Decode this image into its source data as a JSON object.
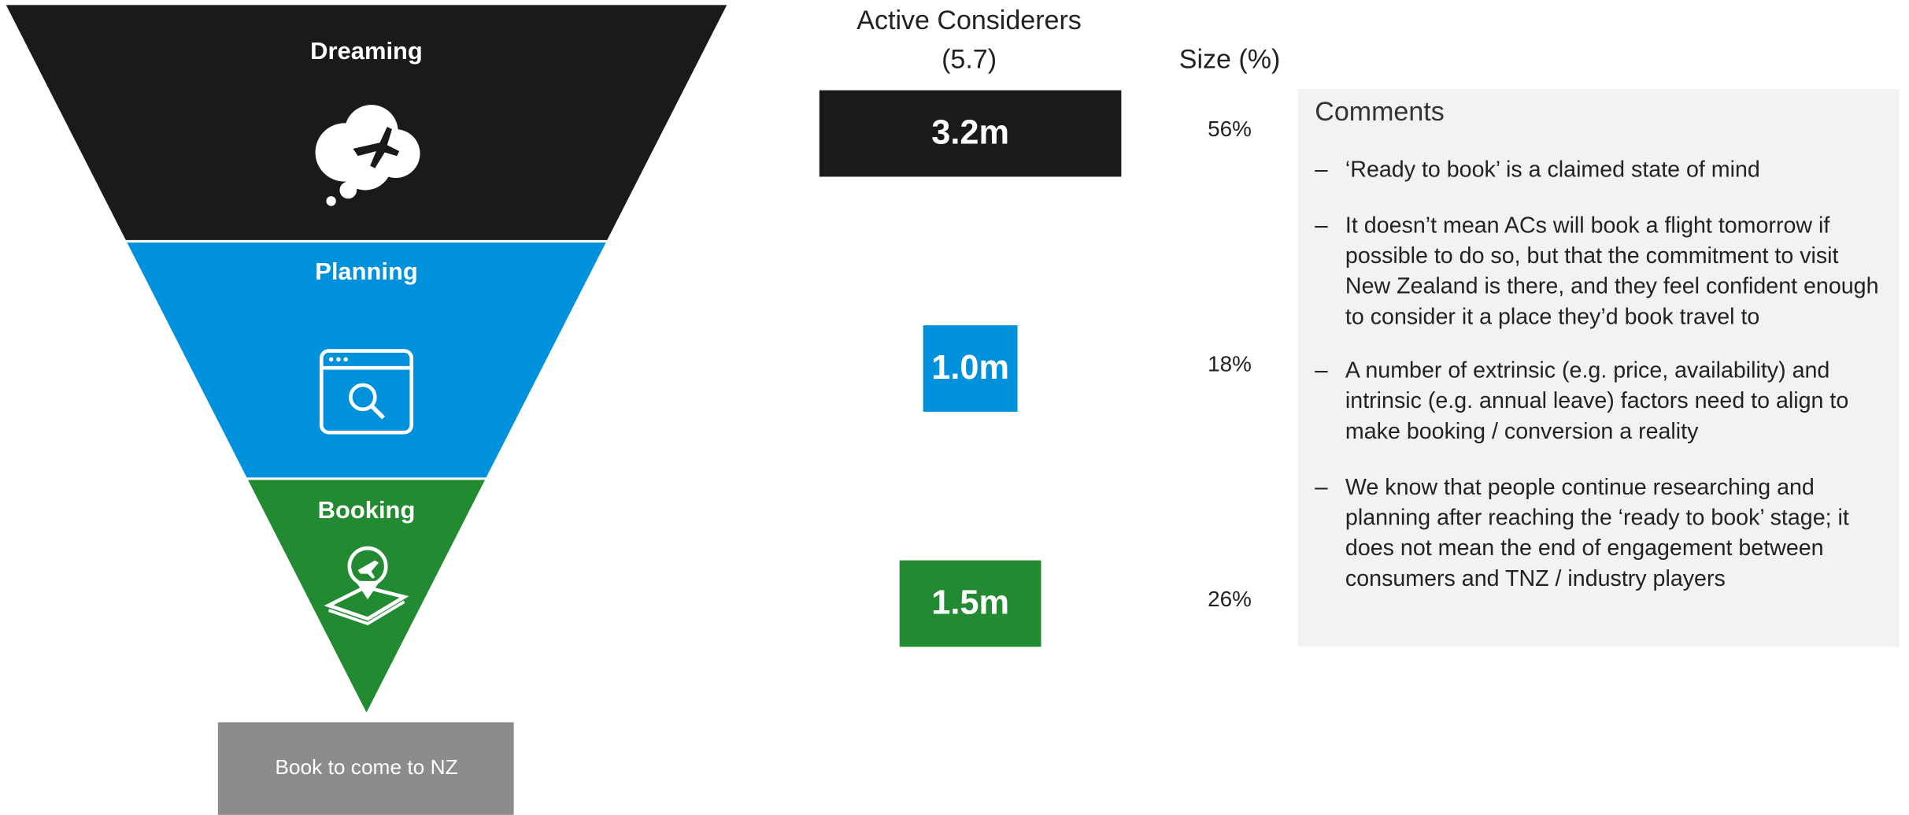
{
  "funnel": {
    "stages": [
      {
        "label": "Dreaming",
        "color": "#1a1a1a"
      },
      {
        "label": "Planning",
        "color": "#0091dd"
      },
      {
        "label": "Booking",
        "color": "#228b32"
      }
    ],
    "outcome": "Book to come to NZ"
  },
  "considerers_title": "Active Considerers",
  "considerers_total": "(5.7)",
  "size_title": "Size (%)",
  "rows": [
    {
      "value": 3.2,
      "label": "3.2m",
      "size": "56%",
      "color": "#1a1a1a"
    },
    {
      "value": 1.0,
      "label": "1.0m",
      "size": "18%",
      "color": "#0091dd"
    },
    {
      "value": 1.5,
      "label": "1.5m",
      "size": "26%",
      "color": "#228b32"
    }
  ],
  "comments": {
    "title": "Comments",
    "items": [
      [
        "‘Ready to book’ is a claimed state of mind"
      ],
      [
        "It doesn’t mean ACs will book a flight tomorrow if",
        "possible to do so, but that the commitment to visit",
        "New Zealand is there, and they feel confident enough",
        "to consider it a place they’d book travel to"
      ],
      [
        "A number of extrinsic (e.g. price, availability) and",
        "intrinsic (e.g. annual leave) factors need to align to",
        "make booking / conversion a reality"
      ],
      [
        "We know that people continue researching and",
        "planning after reaching the ‘ready to book’ stage; it",
        "does not mean the end of engagement between",
        "consumers and  TNZ / industry players"
      ]
    ]
  }
}
